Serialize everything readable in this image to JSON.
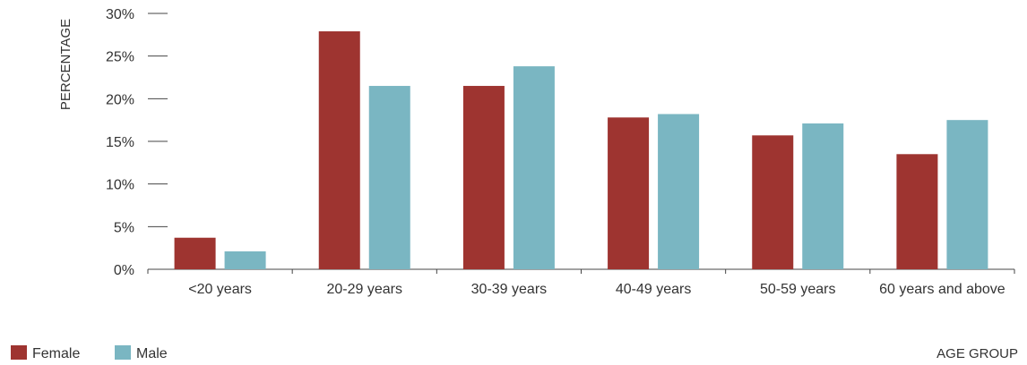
{
  "chart_data": {
    "type": "bar",
    "categories": [
      "<20 years",
      "20-29 years",
      "30-39 years",
      "40-49 years",
      "50-59 years",
      "60 years and above"
    ],
    "series": [
      {
        "name": "Female",
        "color": "#9e3430",
        "values": [
          3.7,
          27.9,
          21.5,
          17.8,
          15.7,
          13.5
        ]
      },
      {
        "name": "Male",
        "color": "#7ab6c2",
        "values": [
          2.1,
          21.5,
          23.8,
          18.2,
          17.1,
          17.5
        ]
      }
    ],
    "ylabel": "PERCENTAGE",
    "xlabel": "AGE GROUP",
    "ylim": [
      0,
      30
    ],
    "yticks": [
      "0%",
      "5%",
      "10%",
      "15%",
      "20%",
      "25%",
      "30%"
    ],
    "legend_position": "bottom-left",
    "grid": false
  }
}
